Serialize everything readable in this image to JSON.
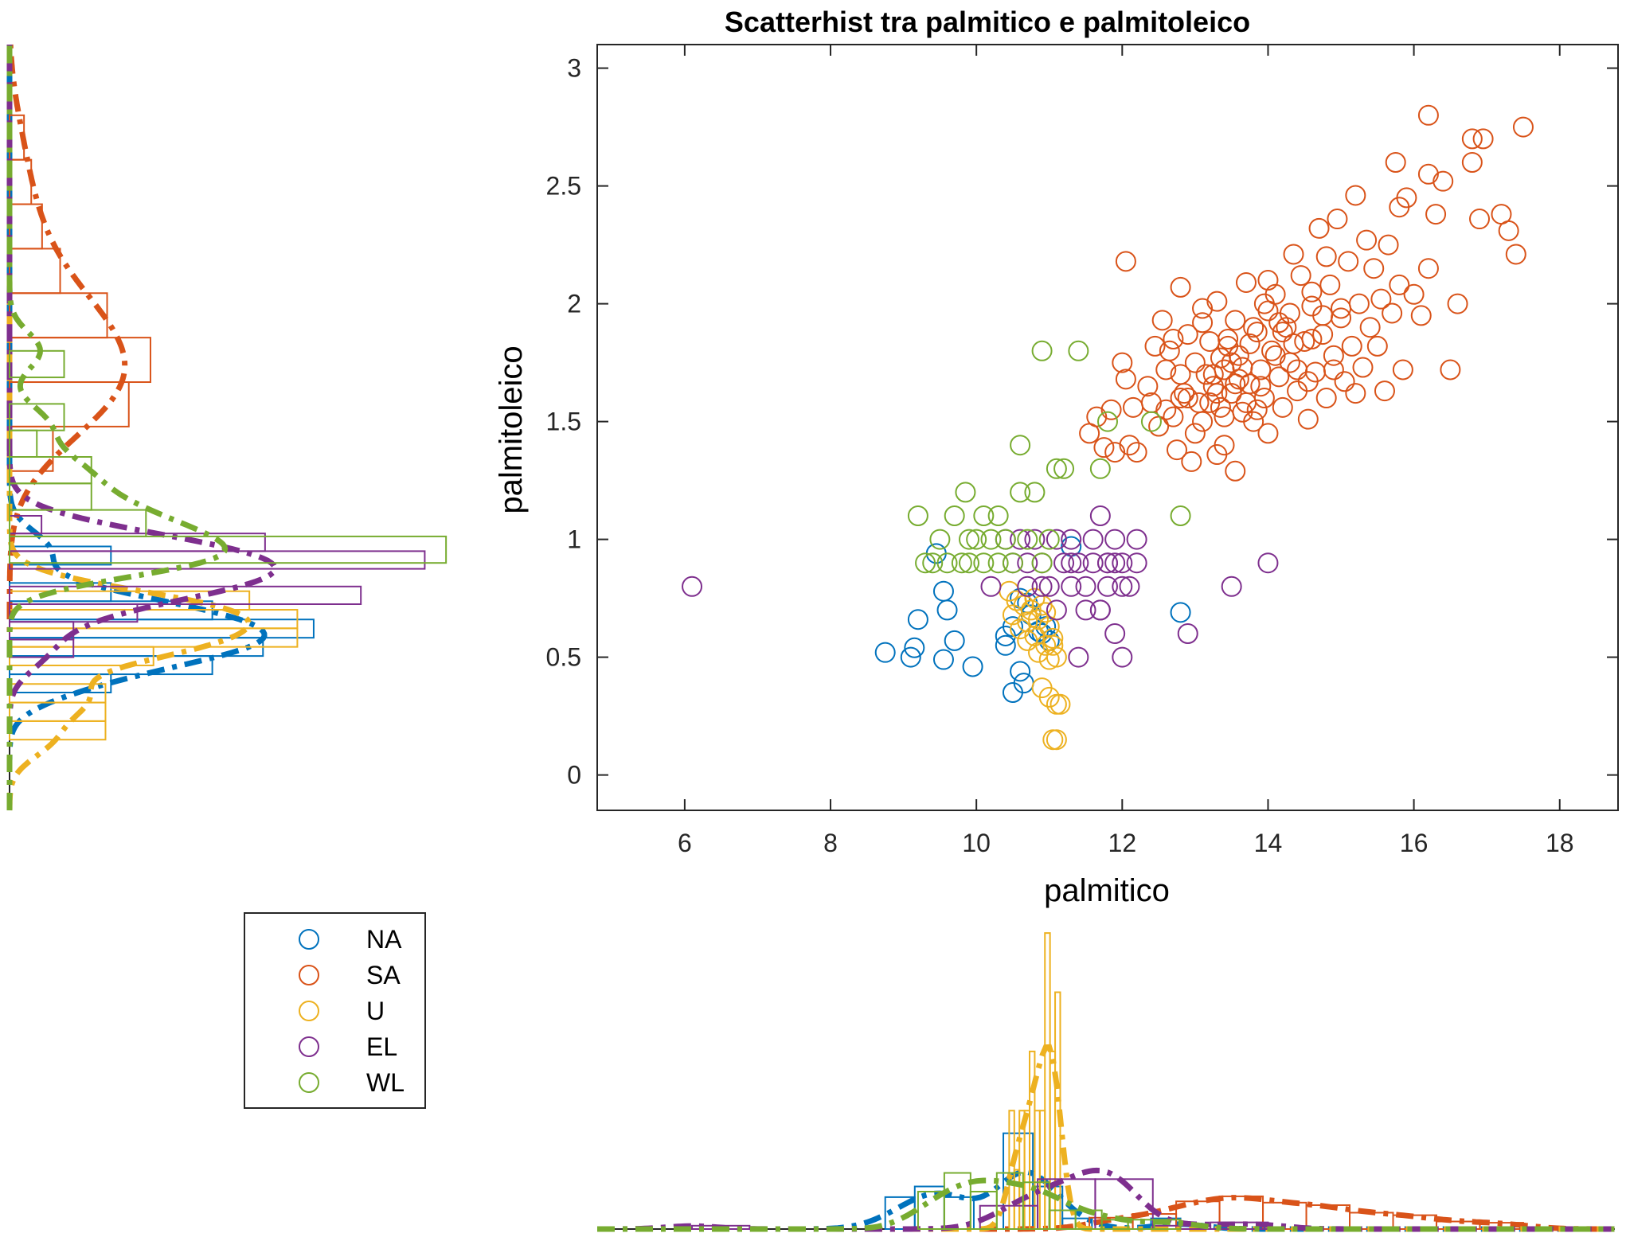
{
  "chart_data": {
    "type": "scatter",
    "title": "Scatterhist tra palmitico e palmitoleico",
    "xlabel": "palmitico",
    "ylabel": "palmitoleico",
    "xlim": [
      4.8,
      18.8
    ],
    "ylim": [
      -0.15,
      3.1
    ],
    "xticks": [
      6,
      8,
      10,
      12,
      14,
      16,
      18
    ],
    "yticks": [
      0,
      0.5,
      1,
      1.5,
      2,
      2.5,
      3
    ],
    "xtick_labels": [
      "6",
      "8",
      "10",
      "12",
      "14",
      "16",
      "18"
    ],
    "ytick_labels": [
      "0",
      "0.5",
      "1",
      "1.5",
      "2",
      "2.5",
      "3"
    ],
    "grid": false,
    "legend_position": "bottom-left",
    "marginal_histograms": true,
    "marginal_density_curves": true,
    "series": [
      {
        "name": "NA",
        "color": "#0072BD",
        "points": [
          [
            8.75,
            0.52
          ],
          [
            9.1,
            0.5
          ],
          [
            9.15,
            0.54
          ],
          [
            9.2,
            0.66
          ],
          [
            9.45,
            0.94
          ],
          [
            9.55,
            0.49
          ],
          [
            9.55,
            0.78
          ],
          [
            9.6,
            0.7
          ],
          [
            9.7,
            0.57
          ],
          [
            9.95,
            0.46
          ],
          [
            10.4,
            0.55
          ],
          [
            10.4,
            0.59
          ],
          [
            10.5,
            0.63
          ],
          [
            10.5,
            0.35
          ],
          [
            10.6,
            0.75
          ],
          [
            10.6,
            0.44
          ],
          [
            10.65,
            0.39
          ],
          [
            10.7,
            0.73
          ],
          [
            10.75,
            0.68
          ],
          [
            10.85,
            0.61
          ],
          [
            10.9,
            0.6
          ],
          [
            10.95,
            0.63
          ],
          [
            11.0,
            0.57
          ],
          [
            11.3,
            0.97
          ],
          [
            12.8,
            0.69
          ]
        ]
      },
      {
        "name": "SA",
        "color": "#D95319",
        "points": [
          [
            11.55,
            1.45
          ],
          [
            11.65,
            1.52
          ],
          [
            11.75,
            1.39
          ],
          [
            11.85,
            1.55
          ],
          [
            11.9,
            1.37
          ],
          [
            12.0,
            1.75
          ],
          [
            12.05,
            2.18
          ],
          [
            12.05,
            1.68
          ],
          [
            12.1,
            1.4
          ],
          [
            12.15,
            1.56
          ],
          [
            12.2,
            1.37
          ],
          [
            12.35,
            1.65
          ],
          [
            12.45,
            1.82
          ],
          [
            12.5,
            1.48
          ],
          [
            12.55,
            1.93
          ],
          [
            12.6,
            1.55
          ],
          [
            12.65,
            1.8
          ],
          [
            12.7,
            1.52
          ],
          [
            12.75,
            1.38
          ],
          [
            12.8,
            2.07
          ],
          [
            12.8,
            1.7
          ],
          [
            12.85,
            1.62
          ],
          [
            12.9,
            1.87
          ],
          [
            12.95,
            1.33
          ],
          [
            13.0,
            1.75
          ],
          [
            13.05,
            1.58
          ],
          [
            13.1,
            1.98
          ],
          [
            13.1,
            1.5
          ],
          [
            13.15,
            1.7
          ],
          [
            13.2,
            1.84
          ],
          [
            13.25,
            1.65
          ],
          [
            13.3,
            1.36
          ],
          [
            13.3,
            2.01
          ],
          [
            13.35,
            1.56
          ],
          [
            13.4,
            1.4
          ],
          [
            13.4,
            1.72
          ],
          [
            13.45,
            1.85
          ],
          [
            13.5,
            1.62
          ],
          [
            13.55,
            1.93
          ],
          [
            13.55,
            1.29
          ],
          [
            13.6,
            1.78
          ],
          [
            13.65,
            1.54
          ],
          [
            13.7,
            2.09
          ],
          [
            13.75,
            1.66
          ],
          [
            13.8,
            1.5
          ],
          [
            13.85,
            1.88
          ],
          [
            13.9,
            1.72
          ],
          [
            13.95,
            1.6
          ],
          [
            14.0,
            1.97
          ],
          [
            14.0,
            1.45
          ],
          [
            14.05,
            1.8
          ],
          [
            14.1,
            2.04
          ],
          [
            14.15,
            1.69
          ],
          [
            14.2,
            1.56
          ],
          [
            14.25,
            1.9
          ],
          [
            14.3,
            1.75
          ],
          [
            14.35,
            2.21
          ],
          [
            14.4,
            1.63
          ],
          [
            14.45,
            2.12
          ],
          [
            14.5,
            1.84
          ],
          [
            14.55,
            1.51
          ],
          [
            14.6,
            1.99
          ],
          [
            14.65,
            1.71
          ],
          [
            14.7,
            2.32
          ],
          [
            14.75,
            1.87
          ],
          [
            14.8,
            1.6
          ],
          [
            14.85,
            2.08
          ],
          [
            14.9,
            1.78
          ],
          [
            14.95,
            2.36
          ],
          [
            15.0,
            1.94
          ],
          [
            15.05,
            1.67
          ],
          [
            15.1,
            2.18
          ],
          [
            15.15,
            1.82
          ],
          [
            15.2,
            2.46
          ],
          [
            15.25,
            2.0
          ],
          [
            15.3,
            1.73
          ],
          [
            15.35,
            2.27
          ],
          [
            15.4,
            1.9
          ],
          [
            15.45,
            2.15
          ],
          [
            15.5,
            1.82
          ],
          [
            15.55,
            2.02
          ],
          [
            15.6,
            1.63
          ],
          [
            15.65,
            2.25
          ],
          [
            15.7,
            1.96
          ],
          [
            15.75,
            2.6
          ],
          [
            15.8,
            2.08
          ],
          [
            15.85,
            1.72
          ],
          [
            15.9,
            2.45
          ],
          [
            16.0,
            2.04
          ],
          [
            16.1,
            1.95
          ],
          [
            16.2,
            2.15
          ],
          [
            16.3,
            2.38
          ],
          [
            16.5,
            1.72
          ],
          [
            16.6,
            2.0
          ],
          [
            16.2,
            2.8
          ],
          [
            16.2,
            2.55
          ],
          [
            16.4,
            2.52
          ],
          [
            16.8,
            2.6
          ],
          [
            16.8,
            2.7
          ],
          [
            16.95,
            2.7
          ],
          [
            16.9,
            2.36
          ],
          [
            17.2,
            2.38
          ],
          [
            17.3,
            2.31
          ],
          [
            17.4,
            2.21
          ],
          [
            17.5,
            2.75
          ],
          [
            15.8,
            2.41
          ],
          [
            15.2,
            1.62
          ],
          [
            14.9,
            1.72
          ],
          [
            14.6,
            1.85
          ],
          [
            14.3,
            1.96
          ],
          [
            14.1,
            1.78
          ],
          [
            13.9,
            1.65
          ],
          [
            13.7,
            1.58
          ],
          [
            13.5,
            1.75
          ],
          [
            13.3,
            1.62
          ],
          [
            13.1,
            1.92
          ],
          [
            12.9,
            1.6
          ],
          [
            12.7,
            1.85
          ],
          [
            14.0,
            2.1
          ],
          [
            14.2,
            1.88
          ],
          [
            14.4,
            1.72
          ],
          [
            13.8,
            1.9
          ],
          [
            13.6,
            1.68
          ],
          [
            13.4,
            1.52
          ],
          [
            13.2,
            1.58
          ],
          [
            13.0,
            1.45
          ],
          [
            12.8,
            1.6
          ],
          [
            14.6,
            2.05
          ],
          [
            14.8,
            2.2
          ],
          [
            15.0,
            1.98
          ],
          [
            13.85,
            1.55
          ],
          [
            13.65,
            1.73
          ],
          [
            13.45,
            1.82
          ],
          [
            13.25,
            1.7
          ],
          [
            14.15,
            1.92
          ],
          [
            14.35,
            1.83
          ],
          [
            14.55,
            1.67
          ],
          [
            14.75,
            1.95
          ],
          [
            12.6,
            1.72
          ],
          [
            12.4,
            1.58
          ],
          [
            13.95,
            2.0
          ],
          [
            13.75,
            1.83
          ],
          [
            13.55,
            1.66
          ],
          [
            13.35,
            1.77
          ]
        ]
      },
      {
        "name": "U",
        "color": "#EDB120",
        "points": [
          [
            10.45,
            0.78
          ],
          [
            10.5,
            0.68
          ],
          [
            10.55,
            0.74
          ],
          [
            10.6,
            0.62
          ],
          [
            10.65,
            0.72
          ],
          [
            10.7,
            0.57
          ],
          [
            10.7,
            0.65
          ],
          [
            10.75,
            0.7
          ],
          [
            10.8,
            0.59
          ],
          [
            10.8,
            0.75
          ],
          [
            10.85,
            0.52
          ],
          [
            10.85,
            0.66
          ],
          [
            10.9,
            0.37
          ],
          [
            10.9,
            0.72
          ],
          [
            10.95,
            0.55
          ],
          [
            10.95,
            0.69
          ],
          [
            11.0,
            0.49
          ],
          [
            11.0,
            0.63
          ],
          [
            11.05,
            0.15
          ],
          [
            11.05,
            0.58
          ],
          [
            11.1,
            0.15
          ],
          [
            11.1,
            0.5
          ],
          [
            11.1,
            0.3
          ],
          [
            11.15,
            0.3
          ],
          [
            11.0,
            0.33
          ],
          [
            11.05,
            0.55
          ]
        ]
      },
      {
        "name": "EL",
        "color": "#7E2F8E",
        "points": [
          [
            6.1,
            0.8
          ],
          [
            10.2,
            0.8
          ],
          [
            10.4,
            1.0
          ],
          [
            10.5,
            0.9
          ],
          [
            10.6,
            1.0
          ],
          [
            10.7,
            0.8
          ],
          [
            10.8,
            1.0
          ],
          [
            10.9,
            0.9
          ],
          [
            11.0,
            0.8
          ],
          [
            11.1,
            1.0
          ],
          [
            11.1,
            0.7
          ],
          [
            11.2,
            0.9
          ],
          [
            11.3,
            0.8
          ],
          [
            11.3,
            1.0
          ],
          [
            11.4,
            0.5
          ],
          [
            11.4,
            0.9
          ],
          [
            11.5,
            0.8
          ],
          [
            11.5,
            0.7
          ],
          [
            11.6,
            1.0
          ],
          [
            11.6,
            0.9
          ],
          [
            11.7,
            0.7
          ],
          [
            11.7,
            1.1
          ],
          [
            11.8,
            0.8
          ],
          [
            11.8,
            0.9
          ],
          [
            11.9,
            1.0
          ],
          [
            11.9,
            0.6
          ],
          [
            12.0,
            0.8
          ],
          [
            12.0,
            0.9
          ],
          [
            12.0,
            0.5
          ],
          [
            12.1,
            0.8
          ],
          [
            12.2,
            1.0
          ],
          [
            12.2,
            0.9
          ],
          [
            11.8,
            0.9
          ],
          [
            11.3,
            0.9
          ],
          [
            10.9,
            0.8
          ],
          [
            10.7,
            0.9
          ],
          [
            11.7,
            0.7
          ],
          [
            11.9,
            0.9
          ],
          [
            12.9,
            0.6
          ],
          [
            13.5,
            0.8
          ],
          [
            14.0,
            0.9
          ]
        ]
      },
      {
        "name": "WL",
        "color": "#77AC30",
        "points": [
          [
            9.2,
            1.1
          ],
          [
            9.3,
            0.9
          ],
          [
            9.4,
            0.9
          ],
          [
            9.5,
            1.0
          ],
          [
            9.6,
            0.9
          ],
          [
            9.7,
            1.1
          ],
          [
            9.8,
            0.9
          ],
          [
            9.85,
            1.2
          ],
          [
            9.9,
            1.0
          ],
          [
            9.9,
            0.9
          ],
          [
            10.0,
            1.0
          ],
          [
            10.1,
            1.1
          ],
          [
            10.1,
            0.9
          ],
          [
            10.2,
            1.0
          ],
          [
            10.3,
            1.1
          ],
          [
            10.3,
            0.9
          ],
          [
            10.4,
            1.0
          ],
          [
            10.5,
            0.9
          ],
          [
            10.6,
            1.2
          ],
          [
            10.6,
            1.4
          ],
          [
            10.7,
            1.0
          ],
          [
            10.8,
            1.2
          ],
          [
            10.9,
            1.8
          ],
          [
            11.1,
            1.3
          ],
          [
            11.2,
            1.3
          ],
          [
            11.4,
            1.8
          ],
          [
            11.8,
            1.5
          ],
          [
            11.7,
            1.3
          ],
          [
            12.4,
            1.5
          ],
          [
            12.8,
            1.1
          ],
          [
            11.0,
            1.0
          ],
          [
            10.9,
            0.9
          ]
        ]
      }
    ]
  }
}
